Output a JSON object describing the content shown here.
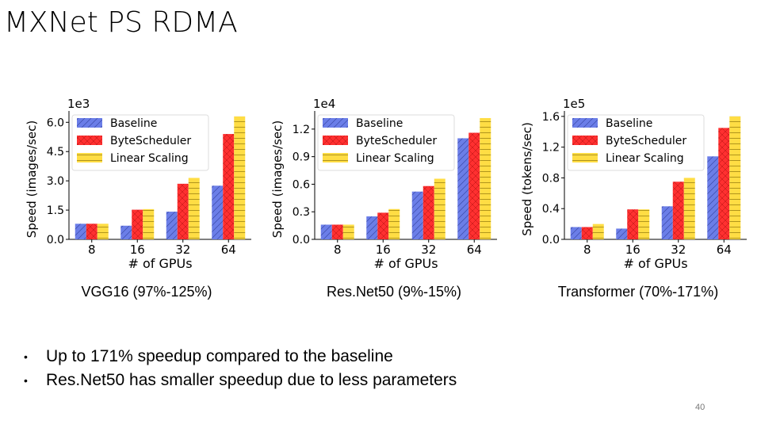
{
  "slide": {
    "title": "MXNet PS RDMA",
    "bullets": [
      "Up to 171% speedup compared to the baseline",
      "Res.Net50 has smaller speedup due to less parameters"
    ],
    "bullet_marker": "•",
    "page_number": "40"
  },
  "colors": {
    "baseline": "#6b7ee8",
    "bytescheduler": "#ff3030",
    "linear": "#ffdd44"
  },
  "chart_data": [
    {
      "type": "bar",
      "caption": "VGG16 (97%-125%)",
      "ylabel": "Speed (images/sec)",
      "xlabel": "# of GPUs",
      "scale_label": "1e3",
      "categories": [
        "8",
        "16",
        "32",
        "64"
      ],
      "ylim": [
        0,
        6.5
      ],
      "yticks": [
        "0.0",
        "1.5",
        "3.0",
        "4.5",
        "6.0"
      ],
      "ytick_values": [
        0,
        1.5,
        3.0,
        4.5,
        6.0
      ],
      "series": [
        {
          "name": "Baseline",
          "values": [
            0.8,
            0.7,
            1.42,
            2.75
          ]
        },
        {
          "name": "ByteScheduler",
          "values": [
            0.8,
            1.52,
            2.85,
            5.4
          ]
        },
        {
          "name": "Linear Scaling",
          "values": [
            0.8,
            1.55,
            3.15,
            6.3
          ]
        }
      ]
    },
    {
      "type": "bar",
      "caption": "Res.Net50 (9%-15%)",
      "ylabel": "Speed (images/sec)",
      "xlabel": "# of GPUs",
      "scale_label": "1e4",
      "categories": [
        "8",
        "16",
        "32",
        "64"
      ],
      "ylim": [
        0,
        1.38
      ],
      "yticks": [
        "0.0",
        "0.3",
        "0.6",
        "0.9",
        "1.2"
      ],
      "ytick_values": [
        0,
        0.3,
        0.6,
        0.9,
        1.2
      ],
      "series": [
        {
          "name": "Baseline",
          "values": [
            0.16,
            0.25,
            0.52,
            1.1
          ]
        },
        {
          "name": "ByteScheduler",
          "values": [
            0.16,
            0.29,
            0.58,
            1.16
          ]
        },
        {
          "name": "Linear Scaling",
          "values": [
            0.16,
            0.33,
            0.66,
            1.32
          ]
        }
      ]
    },
    {
      "type": "bar",
      "caption": "Transformer (70%-171%)",
      "ylabel": "Speed (tokens/sec)",
      "xlabel": "# of GPUs",
      "scale_label": "1e5",
      "categories": [
        "8",
        "16",
        "32",
        "64"
      ],
      "ylim": [
        0,
        1.65
      ],
      "yticks": [
        "0.0",
        "0.4",
        "0.8",
        "1.2",
        "1.6"
      ],
      "ytick_values": [
        0,
        0.4,
        0.8,
        1.2,
        1.6
      ],
      "series": [
        {
          "name": "Baseline",
          "values": [
            0.16,
            0.14,
            0.43,
            1.08
          ]
        },
        {
          "name": "ByteScheduler",
          "values": [
            0.16,
            0.39,
            0.75,
            1.45
          ]
        },
        {
          "name": "Linear Scaling",
          "values": [
            0.2,
            0.39,
            0.8,
            1.6
          ]
        }
      ]
    }
  ]
}
